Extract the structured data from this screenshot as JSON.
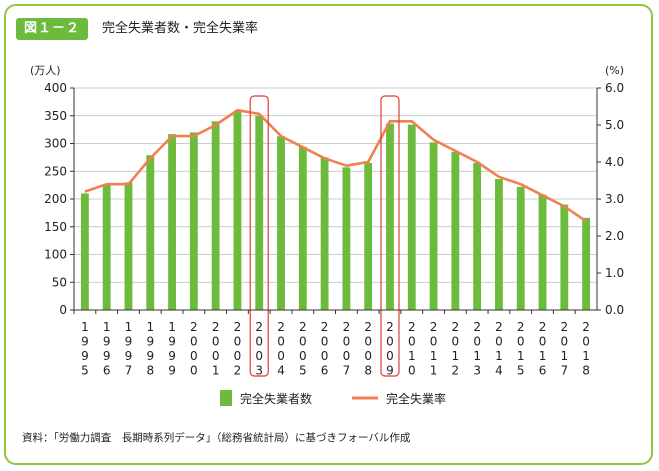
{
  "header": {
    "figure_label": "図１－２",
    "title": "完全失業者数・完全失業率"
  },
  "footer": {
    "source": "資料：「労働力調査　長期時系列データ」（総務省統計局）に基づきフォーバル作成"
  },
  "colors": {
    "frame": "#8dc63f",
    "badge": "#6cbb3c",
    "bar": "#6cbb3c",
    "line": "#f08050",
    "highlight": "#e03c31",
    "grid": "#bbbbbb"
  },
  "chart_data": {
    "type": "bar",
    "title": "完全失業者数・完全失業率",
    "left_unit": "(万人)",
    "right_unit": "(%)",
    "ylim": [
      0,
      400
    ],
    "yticks": [
      "0",
      "50",
      "100",
      "150",
      "200",
      "250",
      "300",
      "350",
      "400"
    ],
    "y2lim": [
      0,
      6
    ],
    "y2ticks": [
      "0.0",
      "1.0",
      "2.0",
      "3.0",
      "4.0",
      "5.0",
      "6.0"
    ],
    "categories": [
      "1995",
      "1996",
      "1997",
      "1998",
      "1999",
      "2000",
      "2001",
      "2002",
      "2003",
      "2004",
      "2005",
      "2006",
      "2007",
      "2008",
      "2009",
      "2010",
      "2011",
      "2012",
      "2013",
      "2014",
      "2015",
      "2016",
      "2017",
      "2018"
    ],
    "highlighted_categories": [
      "2003",
      "2009"
    ],
    "series": [
      {
        "name": "完全失業者数",
        "kind": "bar",
        "axis": "left",
        "values": [
          210,
          225,
          230,
          279,
          317,
          320,
          340,
          359,
          350,
          313,
          294,
          275,
          257,
          265,
          336,
          334,
          302,
          285,
          265,
          236,
          222,
          208,
          190,
          166
        ]
      },
      {
        "name": "完全失業率",
        "kind": "line",
        "axis": "right",
        "values": [
          3.2,
          3.4,
          3.4,
          4.1,
          4.7,
          4.7,
          5.0,
          5.4,
          5.3,
          4.7,
          4.4,
          4.1,
          3.9,
          4.0,
          5.1,
          5.1,
          4.6,
          4.3,
          4.0,
          3.6,
          3.4,
          3.1,
          2.8,
          2.4
        ]
      }
    ],
    "legend": {
      "position": "bottom",
      "bar_label": "完全失業者数",
      "line_label": "完全失業率"
    },
    "grid": true
  }
}
